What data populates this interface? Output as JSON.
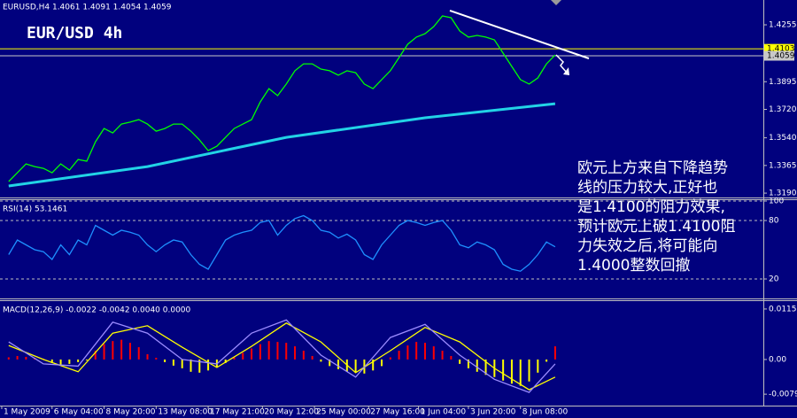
{
  "chart_data": [
    {
      "type": "line",
      "title": "EURUSD,H4 1.4061 1.4091 1.4054 1.4059",
      "subtitle": "EUR/USD 4h",
      "annotation": [
        "欧元上方来自下降趋势",
        "线的压力较大,正好也",
        "是1.4100的阻力效果,",
        "预计欧元上破1.4100阻",
        "力失效之后,将可能向",
        "1.4000整数回撤"
      ],
      "xlim": [
        -1,
        87
      ],
      "ylim": [
        1.3168,
        1.4412
      ],
      "yticks": [
        1.4255,
        1.3895,
        {
          "value": 1.372,
          "label": "1.3720"
        },
        {
          "value": 1.354,
          "label": "1.3540"
        },
        1.3365,
        {
          "value": 1.319,
          "label": "1.3190"
        }
      ],
      "price_lines": [
        {
          "value": 1.4103,
          "color": "#ffff00"
        },
        {
          "value": 1.4059,
          "color": "#c8c8c8"
        }
      ],
      "series": [
        {
          "color": "#00ff00",
          "values": [
            1.3263,
            1.3319,
            1.3375,
            1.3358,
            1.3347,
            1.3319,
            1.3375,
            1.3336,
            1.3403,
            1.3392,
            1.3515,
            1.3599,
            1.3571,
            1.3627,
            1.3639,
            1.3655,
            1.3627,
            1.3582,
            1.3599,
            1.3627,
            1.3627,
            1.3582,
            1.3526,
            1.3459,
            1.3487,
            1.3543,
            1.3599,
            1.3627,
            1.3655,
            1.3767,
            1.3851,
            1.3807,
            1.388,
            1.3964,
            1.4008,
            1.4008,
            1.3975,
            1.3964,
            1.3936,
            1.3964,
            1.3952,
            1.388,
            1.3851,
            1.3908,
            1.3964,
            1.4048,
            1.4132,
            1.4177,
            1.4199,
            1.4244,
            1.4311,
            1.43,
            1.4216,
            1.4177,
            1.4188,
            1.4177,
            1.416,
            1.4076,
            1.3992,
            1.3908,
            1.388,
            1.3919,
            1.4008,
            1.4064
          ]
        },
        {
          "color": "#22d3e6",
          "x": [
            0,
            16,
            32,
            48,
            63
          ],
          "values": [
            1.3235,
            1.3358,
            1.3543,
            1.3667,
            1.3756
          ]
        }
      ]
    },
    {
      "type": "line",
      "title": "RSI(14) 53.1461",
      "xlim": [
        -1,
        87
      ],
      "ylim": [
        0,
        100
      ],
      "yticks": [
        100,
        80,
        20
      ],
      "grid": true,
      "series": [
        {
          "color": "#1e90ff",
          "values": [
            45,
            60,
            55,
            50,
            48,
            40,
            55,
            45,
            60,
            55,
            75,
            70,
            65,
            70,
            68,
            65,
            55,
            48,
            55,
            60,
            58,
            45,
            35,
            30,
            45,
            60,
            65,
            68,
            70,
            78,
            80,
            65,
            75,
            82,
            85,
            80,
            70,
            68,
            62,
            66,
            60,
            45,
            40,
            55,
            65,
            75,
            80,
            78,
            75,
            78,
            80,
            70,
            55,
            52,
            58,
            55,
            50,
            35,
            30,
            28,
            35,
            45,
            58,
            53
          ]
        }
      ]
    },
    {
      "type": "bar",
      "title": "MACD(12,26,9) -0.0022 -0.0042 0.0040 0.0000",
      "xlim": [
        -1,
        87
      ],
      "ylim": [
        -0.0105,
        0.0135
      ],
      "yticks": [
        0.0115,
        {
          "value": 0,
          "label": "0.00"
        },
        -0.0079
      ],
      "xticks": [
        {
          "value": -0.8,
          "label": "1 May 2009"
        },
        {
          "value": 5,
          "label": "6 May 04:00"
        },
        {
          "value": 11,
          "label": "8 May 20:00"
        },
        {
          "value": 17,
          "label": "13 May 08:00"
        },
        {
          "value": 23,
          "label": "17 May 21:00"
        },
        {
          "value": 29.25,
          "label": "20 May 12:00"
        },
        {
          "value": 35.25,
          "label": "25 May 00:00"
        },
        {
          "value": 41.5,
          "label": "27 May 16:00"
        },
        {
          "value": 47.25,
          "label": "1 Jun 04:00"
        },
        {
          "value": 53,
          "label": "3 Jun 20:00"
        },
        {
          "value": 59,
          "label": "8 Jun 08:00"
        }
      ],
      "series": [
        {
          "type": "bar",
          "color": "#ff0000",
          "negative_color": "#ffff00",
          "values": [
            0.0005,
            0.0008,
            0.0006,
            0.0004,
            0.0002,
            -0.0008,
            -0.0012,
            -0.001,
            -0.0006,
            -0.0002,
            0.002,
            0.0035,
            0.0042,
            0.0045,
            0.0038,
            0.0028,
            0.0012,
            0.0004,
            -0.0006,
            -0.0014,
            -0.002,
            -0.0028,
            -0.003,
            -0.0025,
            -0.0018,
            -0.0008,
            0.0005,
            0.0015,
            0.0025,
            0.0035,
            0.0042,
            0.004,
            0.0038,
            0.003,
            0.002,
            0.0008,
            -0.0005,
            -0.0015,
            -0.0022,
            -0.0028,
            -0.003,
            -0.0032,
            -0.0025,
            -0.0015,
            0.0005,
            0.002,
            0.0032,
            0.004,
            0.0038,
            0.003,
            0.002,
            0.0008,
            -0.001,
            -0.002,
            -0.0028,
            -0.0035,
            -0.004,
            -0.0048,
            -0.0055,
            -0.006,
            -0.005,
            -0.003,
            -0.0005,
            0.003
          ]
        },
        {
          "type": "line",
          "color": "#ffff00",
          "x": [
            0,
            4,
            8,
            12,
            16,
            20,
            24,
            28,
            32,
            36,
            40,
            44,
            48,
            52,
            56,
            60,
            63
          ],
          "values": [
            0.0032,
            0.0,
            -0.0028,
            0.006,
            0.0077,
            0.0028,
            -0.0018,
            0.003,
            0.0083,
            0.004,
            -0.003,
            0.002,
            0.0073,
            0.004,
            -0.002,
            -0.0069,
            -0.004
          ]
        },
        {
          "type": "line",
          "color": "#9b8cff",
          "x": [
            0,
            4,
            8,
            12,
            16,
            20,
            24,
            28,
            32,
            36,
            40,
            44,
            48,
            52,
            56,
            60,
            63
          ],
          "values": [
            0.004,
            -0.001,
            -0.0015,
            0.0085,
            0.006,
            0.0,
            -0.001,
            0.006,
            0.009,
            0.001,
            -0.004,
            0.005,
            0.008,
            0.001,
            -0.0045,
            -0.0075,
            -0.001
          ]
        }
      ]
    }
  ]
}
